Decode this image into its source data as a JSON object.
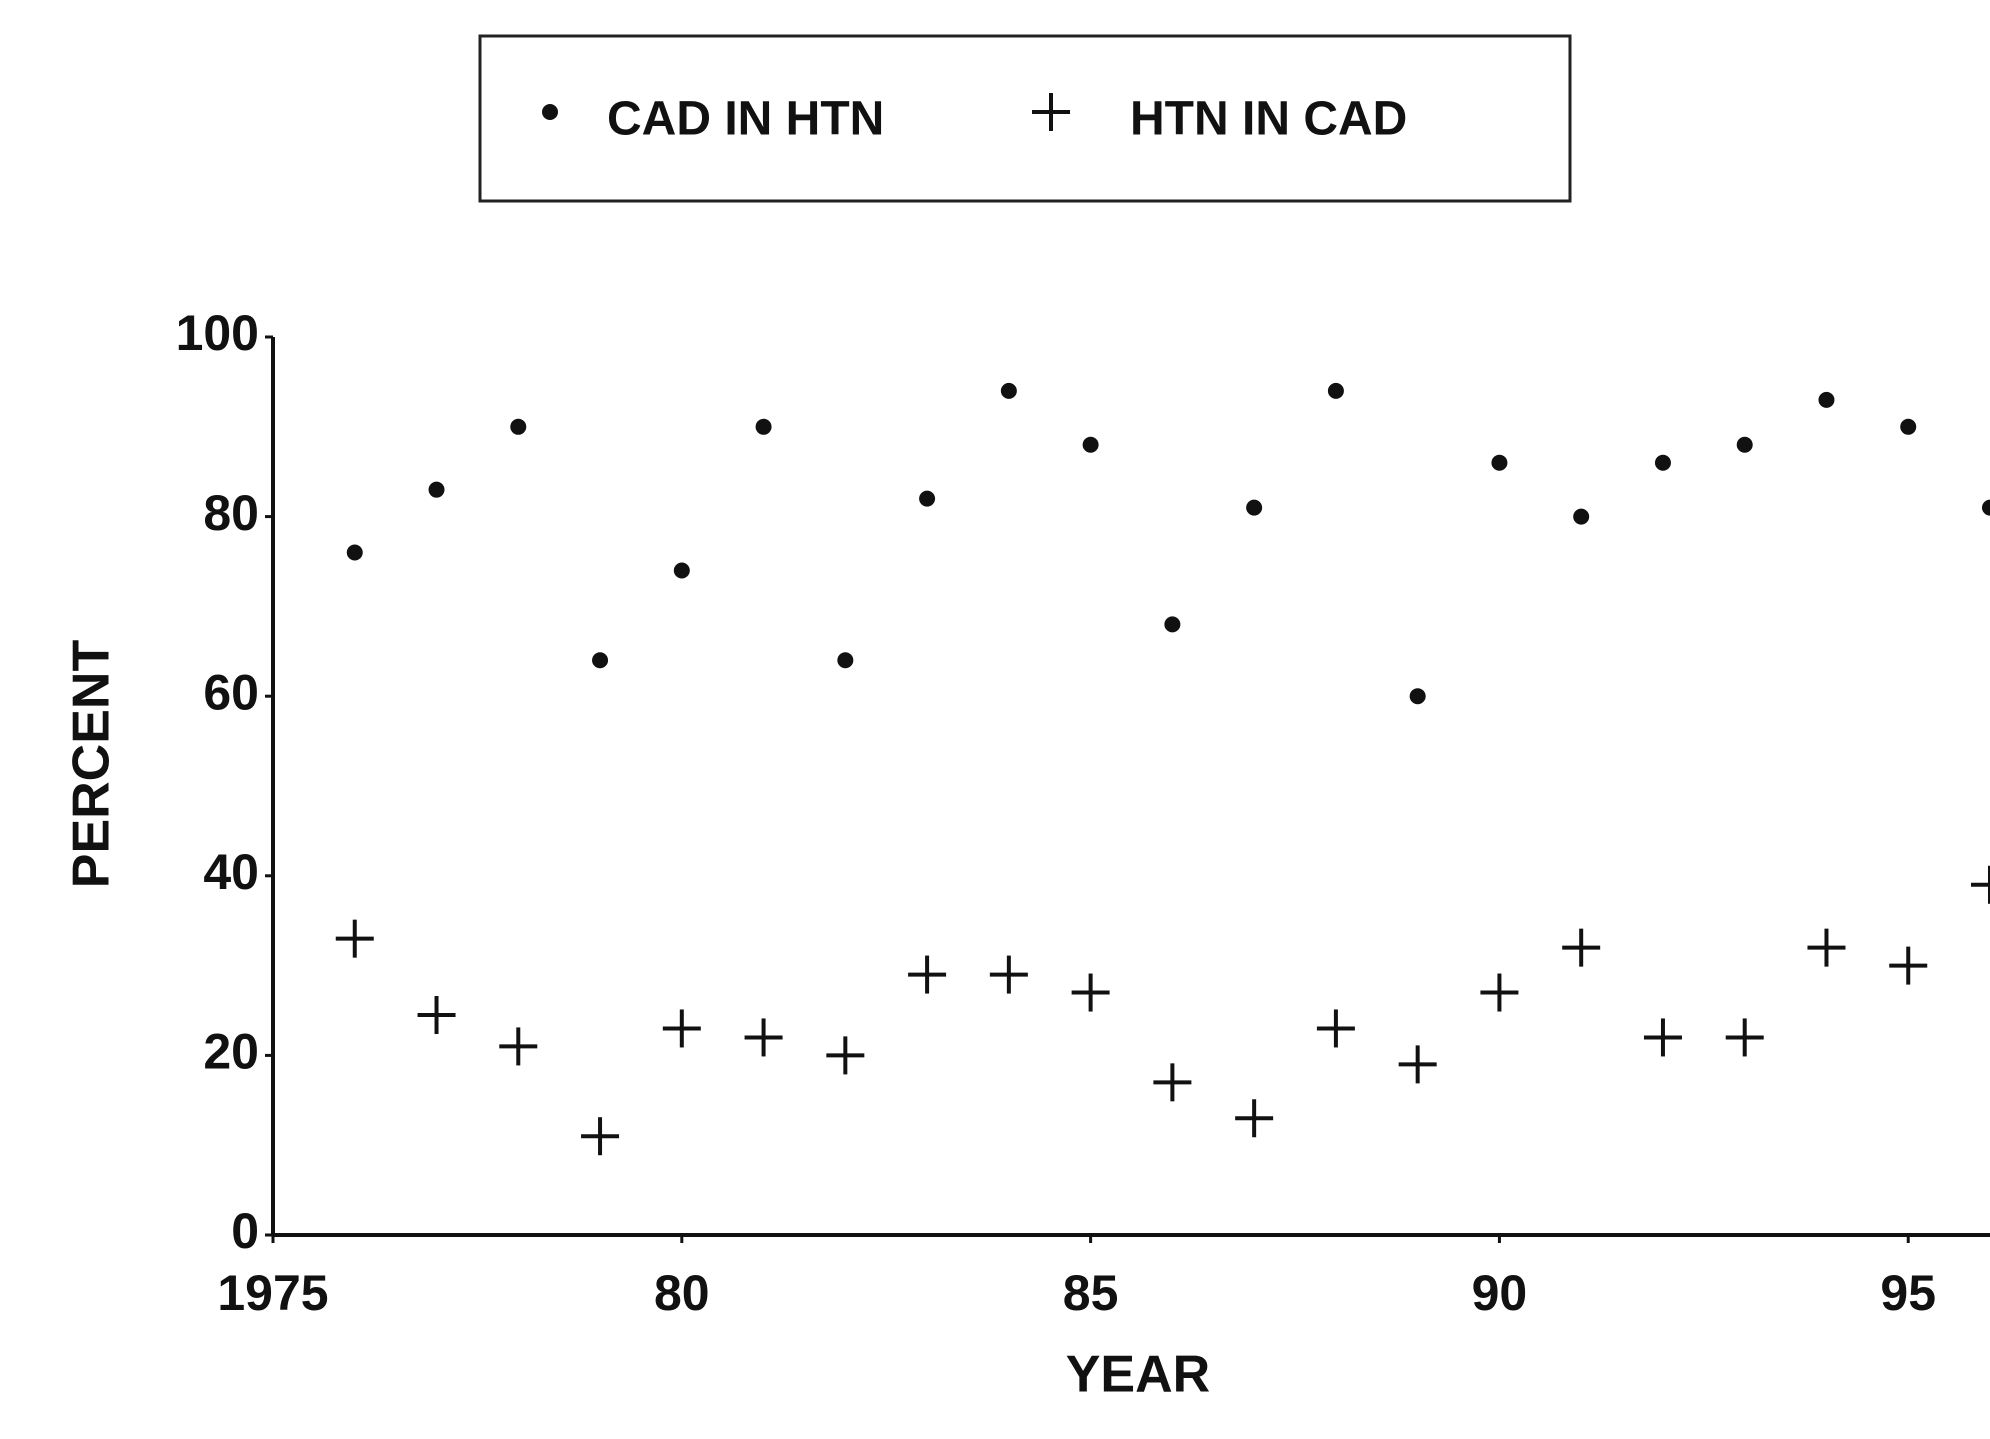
{
  "chart_data": {
    "type": "scatter",
    "xlabel": "YEAR",
    "ylabel": "PERCENT",
    "x": [
      1976,
      1977,
      1978,
      1979,
      1980,
      1981,
      1982,
      1983,
      1984,
      1985,
      1986,
      1987,
      1988,
      1989,
      1990,
      1991,
      1992,
      1993,
      1994,
      1995,
      1996
    ],
    "series": [
      {
        "name": "CAD IN HTN",
        "color": "#111111",
        "marker": "dot",
        "values": [
          76,
          83,
          90,
          64,
          74,
          90,
          64,
          82,
          94,
          88,
          68,
          81,
          94,
          60,
          86,
          80,
          86,
          88,
          93,
          90,
          81
        ]
      },
      {
        "name": "HTN IN CAD",
        "color": "#111111",
        "marker": "plus",
        "values": [
          33,
          24.5,
          21,
          11,
          23,
          22,
          20,
          29,
          29,
          27,
          17,
          13,
          23,
          19,
          27,
          32,
          22,
          22,
          32,
          30,
          39
        ]
      }
    ],
    "xlim": [
      1975,
      1996
    ],
    "xticks": [
      1975,
      {
        "value": 1980,
        "label": "80"
      },
      {
        "value": 1985,
        "label": "85"
      },
      {
        "value": 1990,
        "label": "90"
      },
      {
        "value": 1995,
        "label": "95"
      }
    ],
    "ylim": [
      0,
      100
    ],
    "yticks": [
      0,
      20,
      40,
      60,
      80,
      100
    ],
    "grid": false,
    "legend": "top"
  }
}
